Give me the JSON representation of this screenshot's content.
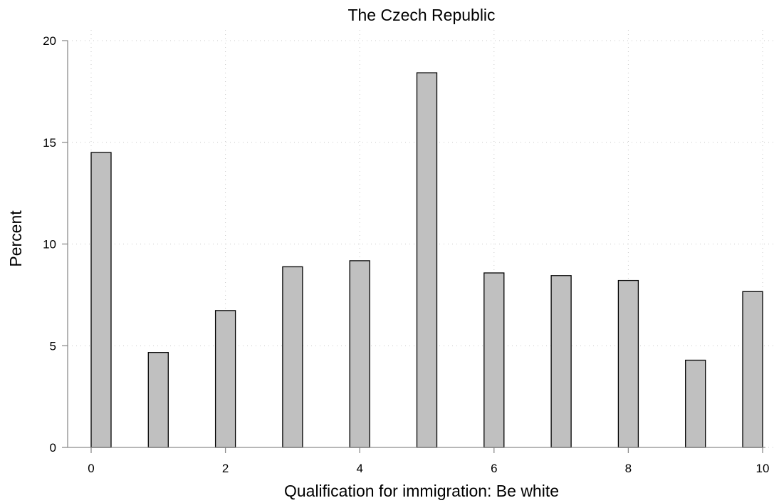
{
  "chart_data": {
    "type": "bar",
    "title": "The Czech Republic",
    "xlabel": "Qualification for immigration: Be white",
    "ylabel": "Percent",
    "x": [
      0,
      1,
      2,
      3,
      4,
      5,
      6,
      7,
      8,
      9,
      10
    ],
    "values": [
      14.5,
      4.67,
      6.73,
      8.88,
      9.18,
      18.42,
      8.58,
      8.45,
      8.21,
      4.29,
      7.66
    ],
    "xlim": [
      0,
      10
    ],
    "ylim": [
      0,
      20
    ],
    "x_ticks": [
      0,
      2,
      4,
      6,
      8,
      10
    ],
    "y_ticks": [
      0,
      5,
      10,
      15,
      20
    ],
    "grid": true,
    "bar_fill": "#c0c0c0",
    "bar_stroke": "#000000"
  }
}
